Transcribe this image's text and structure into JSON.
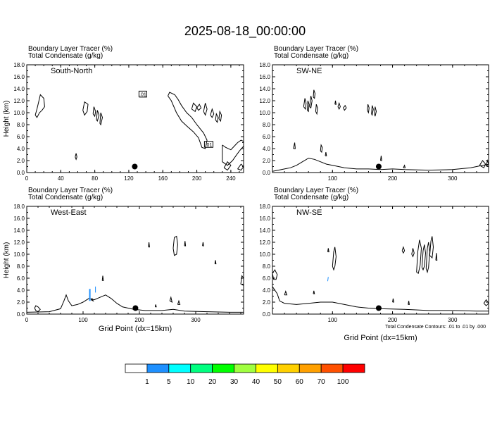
{
  "title": "2025-08-18_00:00:00",
  "chart_data": [
    {
      "type": "line",
      "label_top": "Boundary Layer Tracer   (%)",
      "label_bottom": "Total Condensate   (g/kg)",
      "section": "South-North",
      "ylabel": "Height (km)",
      "xlabel": "",
      "xlim": [
        0,
        255
      ],
      "ylim": [
        0,
        18
      ],
      "xticks": [
        "0",
        "40",
        "80",
        "120",
        "160",
        "200",
        "240"
      ],
      "yticks": [
        "0.0",
        "2.0",
        "4.0",
        "6.0",
        "8.0",
        "10.0",
        "12.0",
        "14.0",
        "16.0",
        "18.0"
      ],
      "contour_labels": [
        ".01",
        ".01"
      ],
      "marker_x": 127
    },
    {
      "type": "line",
      "label_top": "Boundary Layer Tracer   (%)",
      "label_bottom": "Total Condensate   (g/kg)",
      "section": "SW-NE",
      "ylabel": "",
      "xlabel": "",
      "xlim": [
        0,
        360
      ],
      "ylim": [
        0,
        18
      ],
      "xticks": [
        "100",
        "200",
        "300"
      ],
      "yticks": [
        "0.0",
        "2.0",
        "4.0",
        "6.0",
        "8.0",
        "10.0",
        "12.0",
        "14.0",
        "16.0",
        "18.0"
      ],
      "contour_labels": [],
      "marker_x": 177
    },
    {
      "type": "line",
      "label_top": "Boundary Layer Tracer   (%)",
      "label_bottom": "Total Condensate   (g/kg)",
      "section": "West-East",
      "ylabel": "Height (km)",
      "xlabel": "Grid Point (dx=15km)",
      "xlim": [
        0,
        385
      ],
      "ylim": [
        0,
        18
      ],
      "xticks": [
        "0",
        "100",
        "200",
        "300"
      ],
      "yticks": [
        "0.0",
        "2.0",
        "4.0",
        "6.0",
        "8.0",
        "10.0",
        "12.0",
        "14.0",
        "16.0",
        "18.0"
      ],
      "contour_labels": [],
      "marker_x": 193
    },
    {
      "type": "line",
      "label_top": "Boundary Layer Tracer   (%)",
      "label_bottom": "Total Condensate   (g/kg)",
      "section": "NW-SE",
      "ylabel": "",
      "xlabel": "Grid Point (dx=15km)",
      "xlim": [
        0,
        360
      ],
      "ylim": [
        0,
        18
      ],
      "xticks": [
        "100",
        "200",
        "300"
      ],
      "yticks": [
        "0.0",
        "2.0",
        "4.0",
        "6.0",
        "8.0",
        "10.0",
        "12.0",
        "14.0",
        "16.0",
        "18.0"
      ],
      "contour_labels": [],
      "marker_x": 177,
      "note": "Total Condensate Contours: .01 to .01 by .000"
    }
  ],
  "colorbar": {
    "labels": [
      "1",
      "5",
      "10",
      "20",
      "30",
      "40",
      "50",
      "60",
      "70",
      "100"
    ],
    "colors": [
      "#ffffff",
      "#1e90ff",
      "#00ffff",
      "#00ff80",
      "#00ff00",
      "#a0ff40",
      "#ffff00",
      "#ffd000",
      "#ffa000",
      "#ff5000",
      "#ff0000"
    ]
  }
}
